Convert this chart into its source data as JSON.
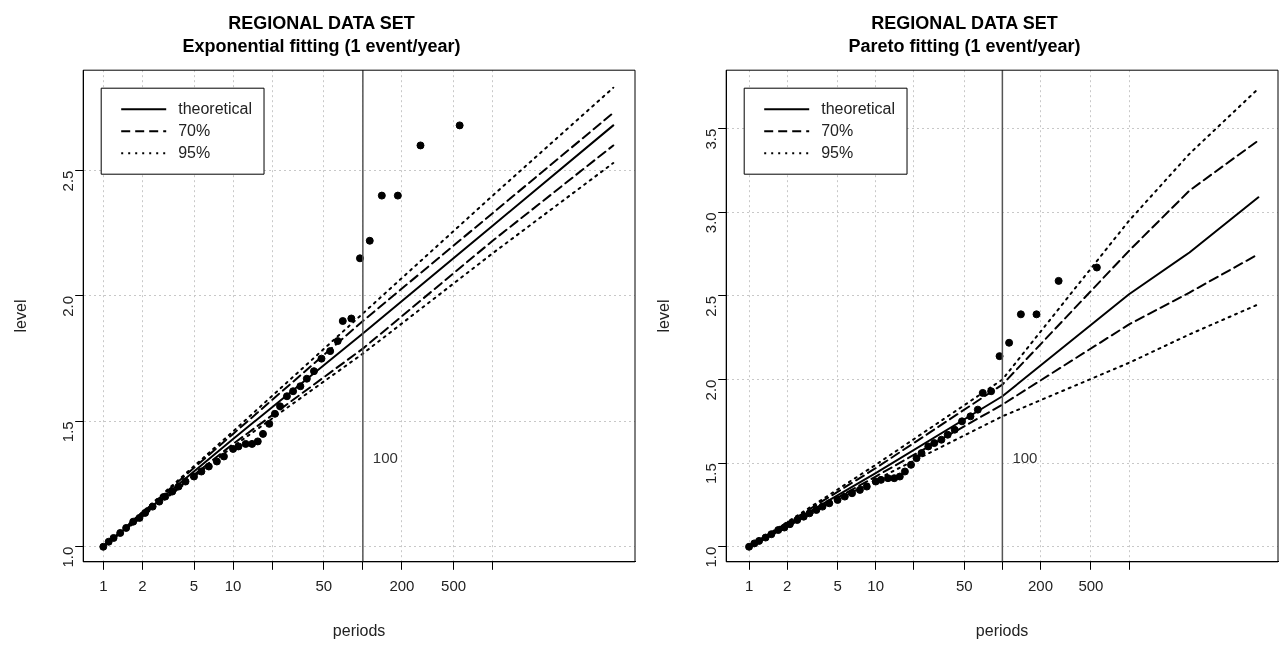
{
  "chart_data": [
    {
      "type": "line",
      "title": "REGIONAL DATA SET",
      "subtitle": "Exponential fitting (1 event/year)",
      "xlabel": "periods",
      "ylabel": "level",
      "log": "x",
      "grid": true,
      "legend": "top left",
      "xlim": [
        0.7,
        12500
      ],
      "xticks": [
        1,
        2,
        5,
        10,
        {
          "value": 20,
          "label": null
        },
        50,
        {
          "value": 100,
          "label": null
        },
        200,
        500,
        {
          "value": 1000,
          "label": null
        }
      ],
      "ylim": [
        0.94,
        2.9
      ],
      "yticks": [
        {
          "value": 1,
          "label": "1.0"
        },
        1.5,
        {
          "value": 2,
          "label": "2.0"
        },
        2.5
      ],
      "ref_lines": [
        {
          "axis": "x",
          "value": 100,
          "label": "100",
          "color": "#555555"
        }
      ],
      "series": [
        {
          "type": "scatter",
          "marker": "circle",
          "color": "#000000",
          "x": [
            1,
            1.1,
            1.2,
            1.35,
            1.5,
            1.7,
            1.9,
            2.1,
            2.4,
            2.7,
            3,
            3.4,
            3.8,
            4.3,
            5,
            5.7,
            6.5,
            7.5,
            8.5,
            10,
            11,
            12.5,
            14,
            15.5,
            17,
            19,
            21,
            23,
            26,
            29,
            33,
            37,
            42,
            48,
            56,
            64,
            70,
            81.5,
            95,
            113,
            140,
            186,
            278,
            557
          ],
          "values": [
            1.0,
            1.02,
            1.035,
            1.055,
            1.075,
            1.1,
            1.115,
            1.135,
            1.16,
            1.18,
            1.2,
            1.22,
            1.24,
            1.26,
            1.28,
            1.3,
            1.32,
            1.34,
            1.36,
            1.39,
            1.4,
            1.41,
            1.41,
            1.42,
            1.45,
            1.49,
            1.53,
            1.56,
            1.6,
            1.62,
            1.64,
            1.67,
            1.7,
            1.75,
            1.78,
            1.82,
            1.9,
            1.91,
            2.15,
            2.22,
            2.4,
            2.4,
            2.6,
            2.68
          ]
        },
        {
          "name": "theoretical",
          "type": "line",
          "line_style": "solid",
          "color": "#000000",
          "x": [
            1,
            10,
            100,
            1000,
            8500
          ],
          "values": [
            1.0,
            1.43,
            1.85,
            2.28,
            2.68
          ]
        },
        {
          "name": "70%",
          "type": "line",
          "line_style": "dashed",
          "color": "#000000",
          "x": [
            1,
            10,
            100,
            1000,
            8500
          ],
          "values": [
            1.0,
            1.45,
            1.9,
            2.33,
            2.73
          ]
        },
        {
          "type": "line",
          "line_style": "dashed",
          "color": "#000000",
          "x": [
            1,
            10,
            100,
            1000,
            8500
          ],
          "values": [
            1.0,
            1.41,
            1.79,
            2.22,
            2.6
          ]
        },
        {
          "name": "95%",
          "type": "line",
          "line_style": "dotted",
          "color": "#000000",
          "x": [
            1,
            10,
            100,
            1000,
            8500
          ],
          "values": [
            1.0,
            1.46,
            1.93,
            2.4,
            2.83
          ]
        },
        {
          "type": "line",
          "line_style": "dotted",
          "color": "#000000",
          "x": [
            1,
            10,
            100,
            1000,
            8500
          ],
          "values": [
            1.0,
            1.4,
            1.77,
            2.17,
            2.53
          ]
        }
      ]
    },
    {
      "type": "line",
      "title": "REGIONAL DATA SET",
      "subtitle": "Pareto fitting (1 event/year)",
      "xlabel": "periods",
      "ylabel": "level",
      "log": "x",
      "grid": true,
      "legend": "top left",
      "xlim": [
        0.66,
        15000
      ],
      "xticks": [
        1,
        2,
        5,
        10,
        {
          "value": 20,
          "label": null
        },
        50,
        {
          "value": 100,
          "label": null
        },
        200,
        500,
        {
          "value": 1000,
          "label": null
        }
      ],
      "ylim": [
        0.91,
        3.85
      ],
      "yticks": [
        {
          "value": 1,
          "label": "1.0"
        },
        1.5,
        {
          "value": 2,
          "label": "2.0"
        },
        2.5,
        {
          "value": 3,
          "label": "3.0"
        },
        3.5
      ],
      "ref_lines": [
        {
          "axis": "x",
          "value": 100,
          "label": "100",
          "color": "#555555"
        }
      ],
      "series": [
        {
          "type": "scatter",
          "marker": "circle",
          "color": "#000000",
          "x": [
            1,
            1.1,
            1.2,
            1.35,
            1.5,
            1.7,
            1.9,
            2.1,
            2.4,
            2.7,
            3,
            3.4,
            3.8,
            4.3,
            5,
            5.7,
            6.5,
            7.5,
            8.5,
            10,
            11,
            12.5,
            14,
            15.5,
            17,
            19,
            21,
            23,
            26,
            29,
            33,
            37,
            42,
            48,
            56,
            64,
            70,
            81.5,
            95,
            113,
            140,
            186,
            278,
            557
          ],
          "values": [
            1.0,
            1.02,
            1.035,
            1.055,
            1.075,
            1.1,
            1.115,
            1.135,
            1.16,
            1.18,
            1.2,
            1.22,
            1.24,
            1.26,
            1.28,
            1.3,
            1.32,
            1.34,
            1.36,
            1.39,
            1.4,
            1.41,
            1.41,
            1.42,
            1.45,
            1.49,
            1.53,
            1.56,
            1.6,
            1.62,
            1.64,
            1.67,
            1.7,
            1.75,
            1.78,
            1.82,
            1.92,
            1.93,
            2.14,
            2.22,
            2.39,
            2.39,
            2.59,
            2.67
          ]
        },
        {
          "name": "theoretical",
          "type": "line",
          "line_style": "solid",
          "color": "#000000",
          "x": [
            1,
            10,
            100,
            1000,
            3000,
            10500
          ],
          "values": [
            1.0,
            1.44,
            1.9,
            2.51,
            2.76,
            3.09
          ]
        },
        {
          "name": "70%",
          "type": "line",
          "line_style": "dashed",
          "color": "#000000",
          "x": [
            1,
            10,
            100,
            1000,
            3000,
            10500
          ],
          "values": [
            1.0,
            1.47,
            1.97,
            2.77,
            3.13,
            3.43
          ]
        },
        {
          "type": "line",
          "line_style": "dashed",
          "color": "#000000",
          "x": [
            1,
            10,
            100,
            1000,
            3000,
            10500
          ],
          "values": [
            1.0,
            1.42,
            1.85,
            2.33,
            2.52,
            2.75
          ]
        },
        {
          "name": "95%",
          "type": "line",
          "line_style": "dotted",
          "color": "#000000",
          "x": [
            1,
            10,
            100,
            1000,
            3000,
            10500
          ],
          "values": [
            1.0,
            1.49,
            2.0,
            2.95,
            3.35,
            3.74
          ]
        },
        {
          "type": "line",
          "line_style": "dotted",
          "color": "#000000",
          "x": [
            1,
            10,
            100,
            1000,
            3000,
            10500
          ],
          "values": [
            1.0,
            1.4,
            1.78,
            2.1,
            2.27,
            2.45
          ]
        }
      ]
    }
  ]
}
